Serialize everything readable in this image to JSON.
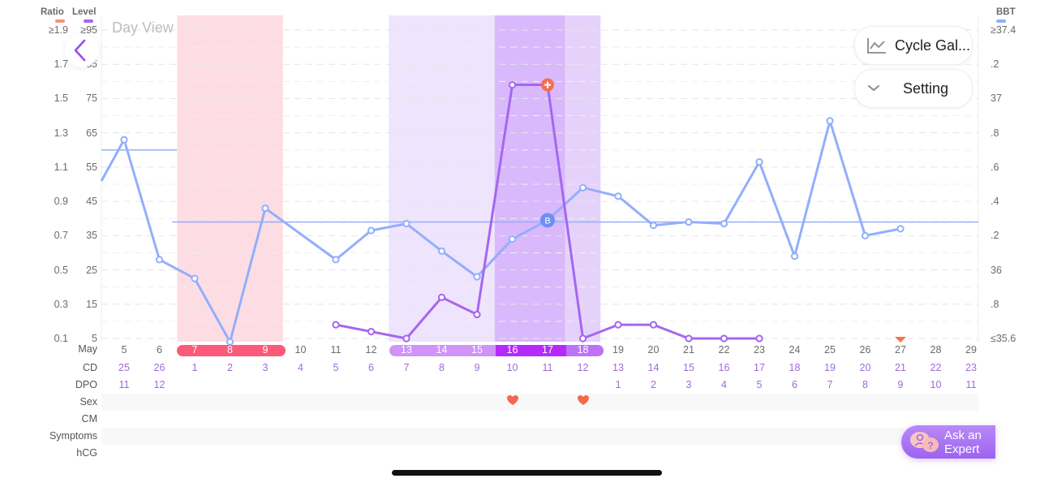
{
  "header": {
    "left_axis_titles": [
      {
        "label": "Ratio",
        "color": "#f8907a"
      },
      {
        "label": "Level",
        "color": "#a566f0"
      }
    ],
    "right_axis_title": {
      "label": "BBT",
      "color": "#93aefc"
    },
    "day_view_label": "Day View",
    "back_icon": "chevron-left-icon"
  },
  "buttons": {
    "cycle_gallery": {
      "label": "Cycle Gal...",
      "icon": "line-chart-icon"
    },
    "setting": {
      "label": "Setting",
      "icon": "chevron-down-icon"
    },
    "ask_expert": {
      "line1": "Ask an",
      "line2": "Expert",
      "icon": "chat-bubbles-icon"
    }
  },
  "row_labels": {
    "month": "May",
    "cd": "CD",
    "dpo": "DPO",
    "sex": "Sex",
    "cm": "CM",
    "symptoms": "Symptoms",
    "hcg": "hCG"
  },
  "colors": {
    "period": "#fb5a78",
    "period_band": "#fddde3",
    "fertile_band_light": "#efe4fd",
    "fertile_band_mid": "#e5d2fb",
    "peak_band": "#d9b9fb",
    "bbt_line": "#93aefc",
    "lh_line": "#a566f0",
    "peak_marker": "#f86e4e",
    "heart": "#f5684d"
  },
  "chart_data": {
    "type": "line",
    "title": "Day View",
    "xlabel": "May",
    "x": [
      5,
      6,
      7,
      8,
      9,
      10,
      11,
      12,
      13,
      14,
      15,
      16,
      17,
      18,
      19,
      20,
      21,
      22,
      23,
      24,
      25,
      26,
      27,
      28,
      29
    ],
    "left_axis_ratio_ticks": [
      "≥1.9",
      "1.7",
      "1.5",
      "1.3",
      "1.1",
      "0.9",
      "0.7",
      "0.5",
      "0.3",
      "0.1"
    ],
    "left_axis_level_ticks": [
      "≥95",
      "85",
      "75",
      "65",
      "55",
      "45",
      "35",
      "25",
      "15",
      "5"
    ],
    "right_axis_bbt_ticks": [
      "≥37.4",
      ".2",
      "37",
      ".8",
      ".6",
      ".4",
      ".2",
      "36",
      ".8",
      "≤35.6"
    ],
    "ylim_level": [
      5,
      95
    ],
    "ylim_bbt": [
      35.6,
      37.4
    ],
    "series": [
      {
        "name": "BBT",
        "axis": "right",
        "color": "#93aefc",
        "values": [
          36.76,
          36.06,
          35.95,
          35.58,
          36.36,
          null,
          36.06,
          36.23,
          36.27,
          36.11,
          35.96,
          36.18,
          36.29,
          36.48,
          36.43,
          36.26,
          36.28,
          36.27,
          36.63,
          36.08,
          36.87,
          36.2,
          36.24,
          null,
          null
        ]
      },
      {
        "name": "LH Level",
        "axis": "left",
        "color": "#a566f0",
        "values": [
          null,
          null,
          null,
          null,
          null,
          null,
          9,
          7,
          5,
          17,
          12,
          79,
          79,
          5,
          9,
          9,
          5,
          5,
          5,
          null,
          null,
          null,
          null,
          null,
          null
        ]
      }
    ],
    "bbt_coverlines": [
      {
        "from": 4.4,
        "to": 6.5,
        "value": 36.7
      },
      {
        "from": 6.5,
        "to": 30,
        "value": 36.28
      }
    ],
    "markers": [
      {
        "day": 17,
        "series": "LH Level",
        "type": "peak",
        "symbol": "+"
      },
      {
        "day": 17,
        "series": "BBT",
        "type": "ovulation",
        "symbol": "B"
      },
      {
        "day": 27,
        "type": "period-forecast-triangle"
      }
    ],
    "bands": [
      {
        "from": 7,
        "to": 9,
        "type": "period"
      },
      {
        "from": 13,
        "to": 15,
        "type": "fertile"
      },
      {
        "from": 16,
        "to": 17,
        "type": "peak"
      },
      {
        "from": 18,
        "to": 18,
        "type": "fertile-late"
      }
    ],
    "cd": [
      25,
      26,
      1,
      2,
      3,
      4,
      5,
      6,
      7,
      8,
      9,
      10,
      11,
      12,
      13,
      14,
      15,
      16,
      17,
      18,
      19,
      20,
      21,
      22,
      23
    ],
    "dpo": [
      11,
      12,
      null,
      null,
      null,
      null,
      null,
      null,
      null,
      null,
      null,
      null,
      null,
      null,
      1,
      2,
      3,
      4,
      5,
      6,
      7,
      8,
      9,
      10,
      11
    ],
    "sex_days": [
      16,
      18
    ],
    "grid": true,
    "legend_position": "top"
  }
}
